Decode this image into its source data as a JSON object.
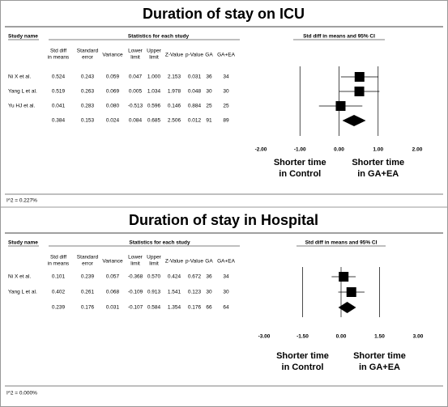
{
  "chart_data": [
    {
      "type": "forest",
      "title": "Duration of stay on ICU",
      "study_header": "Study name",
      "group_header": "Statistics for each study",
      "plot_header": "Std diff in means and 95% CI",
      "columns": [
        [
          "Std diff",
          "in means"
        ],
        [
          "Standard",
          "error"
        ],
        [
          "Variance"
        ],
        [
          "Lower",
          "limit"
        ],
        [
          "Upper",
          "limit"
        ],
        [
          "Z-Value"
        ],
        [
          "p-Value"
        ],
        [
          "GA"
        ],
        [
          "GA+EA"
        ]
      ],
      "rows": [
        {
          "study": "Ni X et al.",
          "values": [
            0.524,
            0.243,
            0.059,
            0.047,
            1.0,
            2.153,
            0.031,
            36,
            34
          ],
          "value_labels": [
            "0.524",
            "0.243",
            "0.059",
            "0.047",
            "1.000",
            "2.153",
            "0.031",
            "36",
            "34"
          ]
        },
        {
          "study": "Yang L et al.",
          "values": [
            0.519,
            0.263,
            0.069,
            0.005,
            1.034,
            1.978,
            0.048,
            30,
            30
          ],
          "value_labels": [
            "0.519",
            "0.263",
            "0.069",
            "0.005",
            "1.034",
            "1.978",
            "0.048",
            "30",
            "30"
          ]
        },
        {
          "study": "Yu HJ et al.",
          "values": [
            0.041,
            0.283,
            0.08,
            -0.513,
            0.596,
            0.146,
            0.884,
            25,
            25
          ],
          "value_labels": [
            "0.041",
            "0.283",
            "0.080",
            "-0.513",
            "0.596",
            "0.146",
            "0.884",
            "25",
            "25"
          ]
        },
        {
          "study": null,
          "summary": true,
          "values": [
            0.384,
            0.153,
            0.024,
            0.084,
            0.685,
            2.506,
            0.012,
            91,
            89
          ],
          "value_labels": [
            "0.384",
            "0.153",
            "0.024",
            "0.084",
            "0.685",
            "2.506",
            "0.012",
            "91",
            "89"
          ]
        }
      ],
      "xlim": [
        -2,
        2
      ],
      "xticks": [
        {
          "value": -2,
          "label": "-2.00"
        },
        {
          "value": -1,
          "label": "-1.00"
        },
        {
          "value": 0,
          "label": "0.00"
        },
        {
          "value": 1,
          "label": "1.00"
        },
        {
          "value": 2,
          "label": "2.00"
        }
      ],
      "left_label": [
        "Shorter time",
        "in Control"
      ],
      "right_label": [
        "Shorter time",
        "in GA+EA"
      ],
      "footnote": "I^2 = 0.227%"
    },
    {
      "type": "forest",
      "title": "Duration of stay in Hospital",
      "study_header": "Study name",
      "group_header": "Statistics for each study",
      "plot_header": "Std diff in means and 95% CI",
      "columns": [
        [
          "Std diff",
          "in means"
        ],
        [
          "Standard",
          "error"
        ],
        [
          "Variance"
        ],
        [
          "Lower",
          "limit"
        ],
        [
          "Upper",
          "limit"
        ],
        [
          "Z-Value"
        ],
        [
          "p-Value"
        ],
        [
          "GA"
        ],
        [
          "GA+EA"
        ]
      ],
      "rows": [
        {
          "study": "Ni X et al.",
          "values": [
            0.101,
            0.239,
            0.057,
            -0.368,
            0.57,
            0.424,
            0.672,
            36,
            34
          ],
          "value_labels": [
            "0.101",
            "0.239",
            "0.057",
            "-0.368",
            "0.570",
            "0.424",
            "0.672",
            "36",
            "34"
          ]
        },
        {
          "study": "Yang L et al.",
          "values": [
            0.402,
            0.261,
            0.068,
            -0.109,
            0.913,
            1.541,
            0.123,
            30,
            30
          ],
          "value_labels": [
            "0.402",
            "0.261",
            "0.068",
            "-0.109",
            "0.913",
            "1.541",
            "0.123",
            "30",
            "30"
          ]
        },
        {
          "study": null,
          "summary": true,
          "values": [
            0.239,
            0.176,
            0.031,
            -0.107,
            0.584,
            1.354,
            0.176,
            66,
            64
          ],
          "value_labels": [
            "0.239",
            "0.176",
            "0.031",
            "-0.107",
            "0.584",
            "1.354",
            "0.176",
            "66",
            "64"
          ]
        }
      ],
      "xlim": [
        -3,
        3
      ],
      "xticks": [
        {
          "value": -3,
          "label": "-3.00"
        },
        {
          "value": -1.5,
          "label": "-1.50"
        },
        {
          "value": 0,
          "label": "0.00"
        },
        {
          "value": 1.5,
          "label": "1.50"
        },
        {
          "value": 3,
          "label": "3.00"
        }
      ],
      "left_label": [
        "Shorter time",
        "in Control"
      ],
      "right_label": [
        "Shorter time",
        "in GA+EA"
      ],
      "footnote": "I^2 = 0.000%"
    }
  ]
}
